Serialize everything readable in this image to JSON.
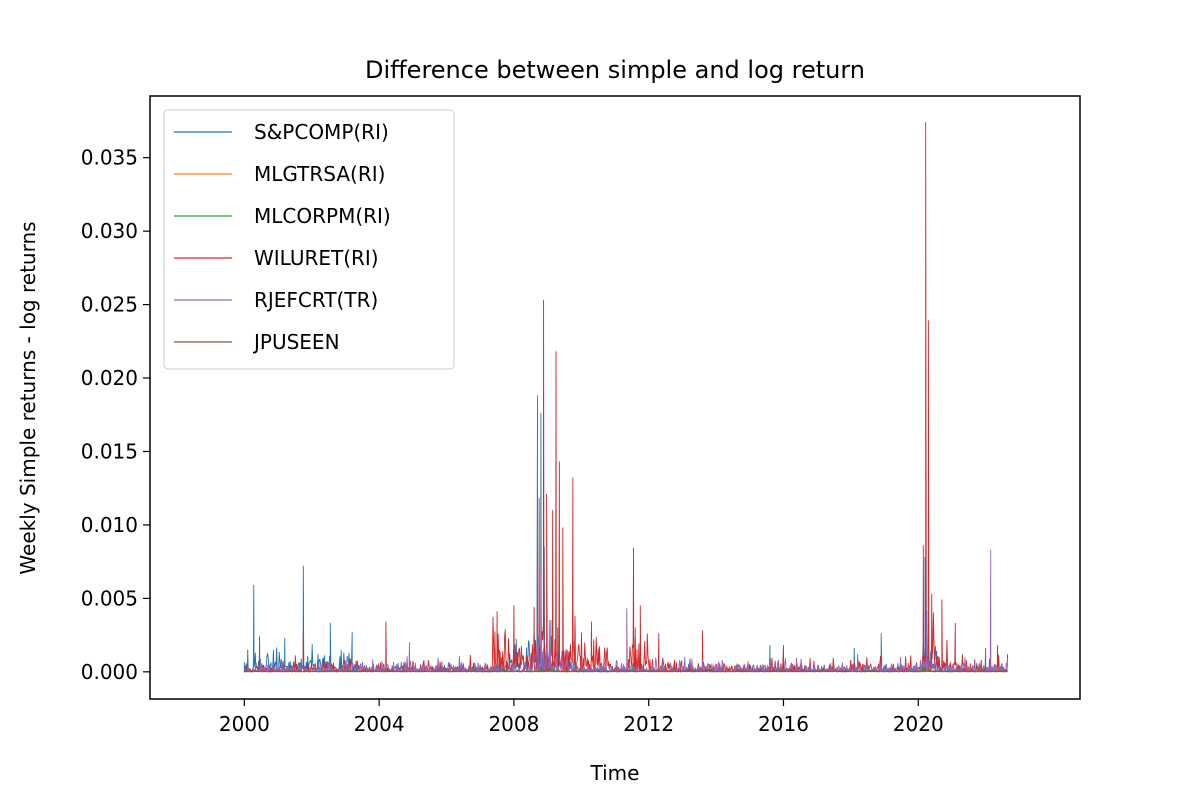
{
  "chart_data": {
    "type": "line",
    "title": "Difference between simple and log return",
    "xlabel": "Time",
    "ylabel": "Weekly Simple returns - log returns",
    "xlim": [
      1997.2,
      2024.8
    ],
    "ylim": [
      -0.00185,
      0.0392
    ],
    "xticks": [
      2000,
      2004,
      2008,
      2012,
      2016,
      2020
    ],
    "xtick_labels": [
      "2000",
      "2004",
      "2008",
      "2012",
      "2016",
      "2020"
    ],
    "yticks": [
      0.0,
      0.005,
      0.01,
      0.015,
      0.02,
      0.025,
      0.03,
      0.035
    ],
    "ytick_labels": [
      "0.000",
      "0.005",
      "0.010",
      "0.015",
      "0.020",
      "0.025",
      "0.030",
      "0.035"
    ],
    "grid": false,
    "legend_position": "top-left",
    "x_range": [
      2000.0,
      2022.65
    ],
    "series": [
      {
        "name": "S&PCOMP(RI)",
        "color": "#1f77b4",
        "values": [
          [
            2000.0,
            0.0
          ],
          [
            2000.1,
            0.0015
          ],
          [
            2000.28,
            0.0059
          ],
          [
            2000.45,
            0.0024
          ],
          [
            2001.2,
            0.0023
          ],
          [
            2001.75,
            0.0072
          ],
          [
            2002.55,
            0.0033
          ],
          [
            2003.2,
            0.0027
          ],
          [
            2008.7,
            0.0188
          ],
          [
            2008.8,
            0.0176
          ],
          [
            2008.9,
            0.0085
          ],
          [
            2009.1,
            0.0035
          ],
          [
            2009.3,
            0.003
          ],
          [
            2011.6,
            0.003
          ],
          [
            2015.6,
            0.0018
          ],
          [
            2016.0,
            0.0018
          ],
          [
            2018.1,
            0.0016
          ],
          [
            2018.9,
            0.0026
          ],
          [
            2020.2,
            0.0078
          ],
          [
            2020.3,
            0.0042
          ],
          [
            2022.0,
            0.0016
          ],
          [
            2022.6,
            0.0
          ]
        ]
      },
      {
        "name": "MLGTRSA(RI)",
        "color": "#ff7f0e",
        "values": [
          [
            2000.0,
            0.0
          ],
          [
            2008.8,
            0.00015
          ],
          [
            2020.2,
            0.00015
          ],
          [
            2022.65,
            0.0
          ]
        ]
      },
      {
        "name": "MLCORPM(RI)",
        "color": "#2ca02c",
        "values": [
          [
            2000.0,
            0.0
          ],
          [
            2008.8,
            0.0004
          ],
          [
            2020.2,
            0.00035
          ],
          [
            2022.65,
            0.0
          ]
        ]
      },
      {
        "name": "WILURET(RI)",
        "color": "#d62728",
        "values": [
          [
            2000.0,
            0.0
          ],
          [
            2001.75,
            0.0028
          ],
          [
            2004.2,
            0.0034
          ],
          [
            2007.5,
            0.0041
          ],
          [
            2008.0,
            0.0045
          ],
          [
            2008.6,
            0.0044
          ],
          [
            2008.75,
            0.0118
          ],
          [
            2008.88,
            0.0253
          ],
          [
            2008.97,
            0.0121
          ],
          [
            2009.15,
            0.011
          ],
          [
            2009.25,
            0.0218
          ],
          [
            2009.35,
            0.0143
          ],
          [
            2009.45,
            0.0098
          ],
          [
            2009.75,
            0.0132
          ],
          [
            2010.3,
            0.0034
          ],
          [
            2011.55,
            0.0084
          ],
          [
            2011.75,
            0.0045
          ],
          [
            2012.3,
            0.0026
          ],
          [
            2013.6,
            0.0028
          ],
          [
            2016.0,
            0.0016
          ],
          [
            2020.15,
            0.0086
          ],
          [
            2020.22,
            0.0374
          ],
          [
            2020.3,
            0.0239
          ],
          [
            2020.4,
            0.0053
          ],
          [
            2020.7,
            0.0049
          ],
          [
            2021.1,
            0.0033
          ],
          [
            2022.35,
            0.0018
          ],
          [
            2022.65,
            0.0012
          ]
        ]
      },
      {
        "name": "RJEFCRT(TR)",
        "color": "#9467bd",
        "values": [
          [
            2000.0,
            0.0
          ],
          [
            2004.9,
            0.002
          ],
          [
            2008.8,
            0.0068
          ],
          [
            2009.05,
            0.0035
          ],
          [
            2011.35,
            0.0043
          ],
          [
            2018.2,
            0.0012
          ],
          [
            2020.25,
            0.0042
          ],
          [
            2022.15,
            0.0083
          ],
          [
            2022.65,
            0.0005
          ]
        ]
      },
      {
        "name": "JPUSEEN",
        "color": "#8c564b",
        "values": [
          [
            2000.0,
            0.0
          ],
          [
            2008.8,
            0.0003
          ],
          [
            2020.2,
            0.0003
          ],
          [
            2022.65,
            0.0
          ]
        ]
      }
    ]
  }
}
